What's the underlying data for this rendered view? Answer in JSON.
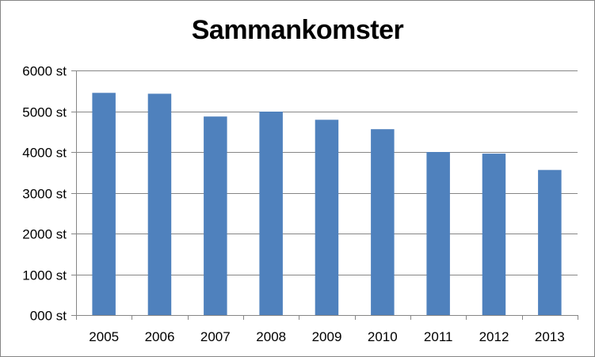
{
  "chart_data": {
    "type": "bar",
    "title": "Sammankomster",
    "categories": [
      "2005",
      "2006",
      "2007",
      "2008",
      "2009",
      "2010",
      "2011",
      "2012",
      "2013"
    ],
    "values": [
      5450,
      5430,
      4870,
      4990,
      4790,
      4560,
      4000,
      3960,
      3560
    ],
    "ylim": [
      0,
      6000
    ],
    "yticks": [
      0,
      1000,
      2000,
      3000,
      4000,
      5000,
      6000
    ],
    "ytick_labels": [
      "000 st",
      "1000 st",
      "2000 st",
      "3000 st",
      "4000 st",
      "5000 st",
      "6000 st"
    ],
    "grid": true,
    "legend": "none",
    "colors": {
      "bar": "#4F81BD",
      "grid": "#868686",
      "axis": "#868686"
    }
  }
}
